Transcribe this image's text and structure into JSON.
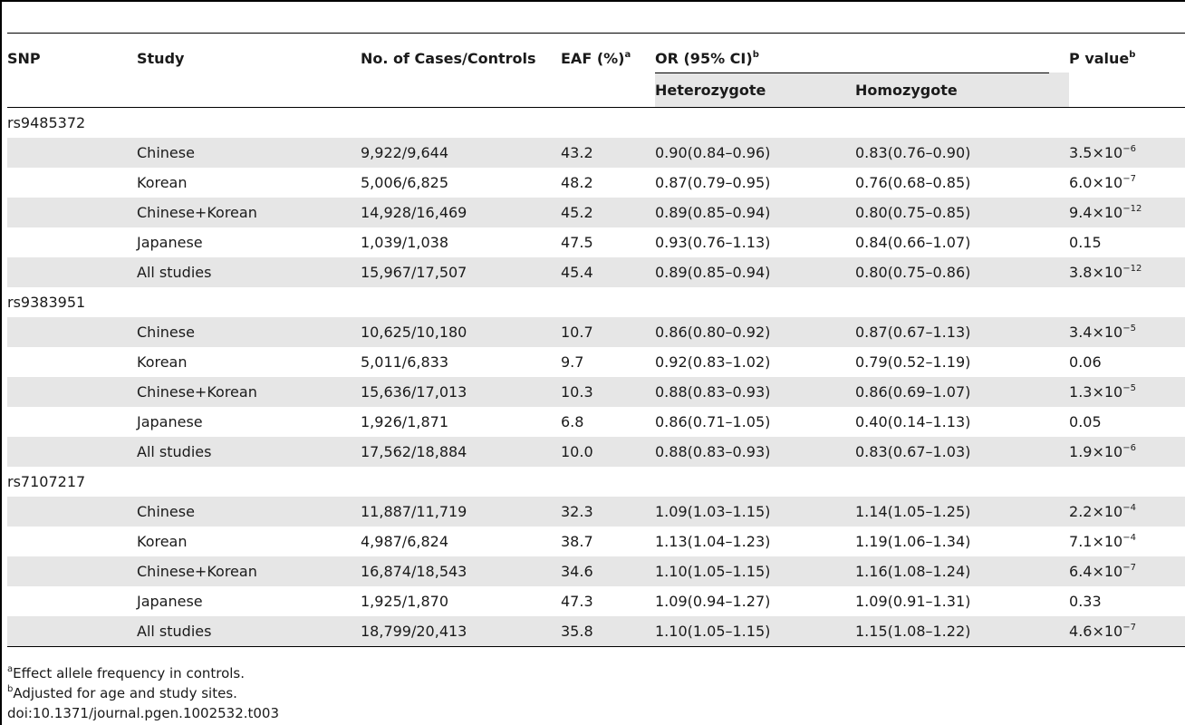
{
  "header": {
    "snp": "SNP",
    "study": "Study",
    "cases_controls": "No. of Cases/Controls",
    "eaf": "EAF (%)",
    "eaf_sup": "a",
    "or": "OR (95% CI)",
    "or_sup": "b",
    "pvalue": "P value",
    "pvalue_sup": "b",
    "het": "Heterozygote",
    "hom": "Homozygote"
  },
  "sections": [
    {
      "snp": "rs9485372",
      "rows": [
        {
          "study": "Chinese",
          "n": "9,922/9,644",
          "eaf": "43.2",
          "het": "0.90(0.84–0.96)",
          "hom": "0.83(0.76–0.90)",
          "p_base": "3.5×10",
          "p_exp": "−6"
        },
        {
          "study": "Korean",
          "n": "5,006/6,825",
          "eaf": "48.2",
          "het": "0.87(0.79–0.95)",
          "hom": "0.76(0.68–0.85)",
          "p_base": "6.0×10",
          "p_exp": "−7"
        },
        {
          "study": "Chinese+Korean",
          "n": "14,928/16,469",
          "eaf": "45.2",
          "het": "0.89(0.85–0.94)",
          "hom": "0.80(0.75–0.85)",
          "p_base": "9.4×10",
          "p_exp": "−12"
        },
        {
          "study": "Japanese",
          "n": "1,039/1,038",
          "eaf": "47.5",
          "het": "0.93(0.76–1.13)",
          "hom": "0.84(0.66–1.07)",
          "p_base": "0.15",
          "p_exp": ""
        },
        {
          "study": "All studies",
          "n": "15,967/17,507",
          "eaf": "45.4",
          "het": "0.89(0.85–0.94)",
          "hom": "0.80(0.75–0.86)",
          "p_base": "3.8×10",
          "p_exp": "−12"
        }
      ]
    },
    {
      "snp": "rs9383951",
      "rows": [
        {
          "study": "Chinese",
          "n": "10,625/10,180",
          "eaf": "10.7",
          "het": "0.86(0.80–0.92)",
          "hom": "0.87(0.67–1.13)",
          "p_base": "3.4×10",
          "p_exp": "−5"
        },
        {
          "study": "Korean",
          "n": "5,011/6,833",
          "eaf": "9.7",
          "het": "0.92(0.83–1.02)",
          "hom": "0.79(0.52–1.19)",
          "p_base": "0.06",
          "p_exp": ""
        },
        {
          "study": "Chinese+Korean",
          "n": "15,636/17,013",
          "eaf": "10.3",
          "het": "0.88(0.83–0.93)",
          "hom": "0.86(0.69–1.07)",
          "p_base": "1.3×10",
          "p_exp": "−5"
        },
        {
          "study": "Japanese",
          "n": "1,926/1,871",
          "eaf": "6.8",
          "het": "0.86(0.71–1.05)",
          "hom": "0.40(0.14–1.13)",
          "p_base": "0.05",
          "p_exp": ""
        },
        {
          "study": "All studies",
          "n": "17,562/18,884",
          "eaf": "10.0",
          "het": "0.88(0.83–0.93)",
          "hom": "0.83(0.67–1.03)",
          "p_base": "1.9×10",
          "p_exp": "−6"
        }
      ]
    },
    {
      "snp": "rs7107217",
      "rows": [
        {
          "study": "Chinese",
          "n": "11,887/11,719",
          "eaf": "32.3",
          "het": "1.09(1.03–1.15)",
          "hom": "1.14(1.05–1.25)",
          "p_base": "2.2×10",
          "p_exp": "−4"
        },
        {
          "study": "Korean",
          "n": "4,987/6,824",
          "eaf": "38.7",
          "het": "1.13(1.04–1.23)",
          "hom": "1.19(1.06–1.34)",
          "p_base": "7.1×10",
          "p_exp": "−4"
        },
        {
          "study": "Chinese+Korean",
          "n": "16,874/18,543",
          "eaf": "34.6",
          "het": "1.10(1.05–1.15)",
          "hom": "1.16(1.08–1.24)",
          "p_base": "6.4×10",
          "p_exp": "−7"
        },
        {
          "study": "Japanese",
          "n": "1,925/1,870",
          "eaf": "47.3",
          "het": "1.09(0.94–1.27)",
          "hom": "1.09(0.91–1.31)",
          "p_base": "0.33",
          "p_exp": ""
        },
        {
          "study": "All studies",
          "n": "18,799/20,413",
          "eaf": "35.8",
          "het": "1.10(1.05–1.15)",
          "hom": "1.15(1.08–1.22)",
          "p_base": "4.6×10",
          "p_exp": "−7"
        }
      ]
    }
  ],
  "footnotes": {
    "a_mark": "a",
    "a_text": "Effect allele frequency in controls.",
    "b_mark": "b",
    "b_text": "Adjusted for age and study sites.",
    "doi": "doi:10.1371/journal.pgen.1002532.t003"
  }
}
